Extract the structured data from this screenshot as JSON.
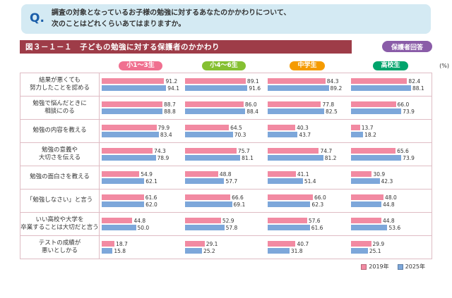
{
  "question": {
    "q": "Q.",
    "lines": [
      "調査の対象となっているお子様の勉強に対するあなたのかかわりについて、",
      "次のことはどれくらいあてはまりますか。"
    ]
  },
  "header": {
    "figure_title": "図３－１－１　子どもの勉強に対する保護者のかかわり",
    "respondent_badge": "保護者回答"
  },
  "unit_label": "(%)",
  "columns": [
    {
      "label": "小1～3生",
      "color": "#f07090"
    },
    {
      "label": "小4～6生",
      "color": "#85c032"
    },
    {
      "label": "中学生",
      "color": "#f59b00"
    },
    {
      "label": "高校生",
      "color": "#00a46c"
    }
  ],
  "legend": [
    {
      "label": "2019年",
      "color": "#f28aa2"
    },
    {
      "label": "2025年",
      "color": "#7da7da"
    }
  ],
  "chart_data": {
    "type": "bar",
    "orientation": "horizontal",
    "title": "図３－１－１　子どもの勉強に対する保護者のかかわり",
    "unit": "%",
    "xlim": [
      0,
      100
    ],
    "grid": false,
    "legend_position": "bottom-right",
    "groups": [
      "小1～3生",
      "小4～6生",
      "中学生",
      "高校生"
    ],
    "series": [
      "2019年",
      "2025年"
    ],
    "series_colors": [
      "#f28aa2",
      "#7da7da"
    ],
    "rows": [
      {
        "label_lines": [
          "結果が悪くても",
          "努力したことを認める"
        ],
        "values": [
          [
            91.2,
            94.1
          ],
          [
            89.1,
            91.6
          ],
          [
            84.3,
            89.2
          ],
          [
            82.4,
            88.1
          ]
        ]
      },
      {
        "label_lines": [
          "勉強で悩んだときに",
          "相談にのる"
        ],
        "values": [
          [
            88.7,
            88.8
          ],
          [
            86.0,
            88.4
          ],
          [
            77.8,
            82.5
          ],
          [
            66.0,
            73.9
          ]
        ]
      },
      {
        "label_lines": [
          "勉強の内容を教える"
        ],
        "values": [
          [
            79.9,
            83.4
          ],
          [
            64.5,
            70.3
          ],
          [
            40.3,
            43.7
          ],
          [
            13.7,
            18.2
          ]
        ]
      },
      {
        "label_lines": [
          "勉強の意義や",
          "大切さを伝える"
        ],
        "values": [
          [
            74.3,
            78.9
          ],
          [
            75.7,
            81.1
          ],
          [
            74.7,
            81.2
          ],
          [
            65.6,
            73.9
          ]
        ]
      },
      {
        "label_lines": [
          "勉強の面白さを教える"
        ],
        "values": [
          [
            54.9,
            62.1
          ],
          [
            48.8,
            57.7
          ],
          [
            41.1,
            51.4
          ],
          [
            30.9,
            42.3
          ]
        ]
      },
      {
        "label_lines": [
          "「勉強しなさい」と言う"
        ],
        "values": [
          [
            61.6,
            62.0
          ],
          [
            66.6,
            69.1
          ],
          [
            66.0,
            62.3
          ],
          [
            48.0,
            44.8
          ]
        ]
      },
      {
        "label_lines": [
          "いい高校や大学を",
          "卒業することは大切だと言う"
        ],
        "values": [
          [
            44.8,
            50.0
          ],
          [
            52.9,
            57.8
          ],
          [
            57.6,
            61.6
          ],
          [
            44.8,
            53.6
          ]
        ]
      },
      {
        "label_lines": [
          "テストの成績が",
          "悪いとしかる"
        ],
        "values": [
          [
            18.7,
            15.8
          ],
          [
            29.1,
            25.2
          ],
          [
            40.7,
            31.8
          ],
          [
            29.9,
            25.1
          ]
        ]
      }
    ]
  }
}
